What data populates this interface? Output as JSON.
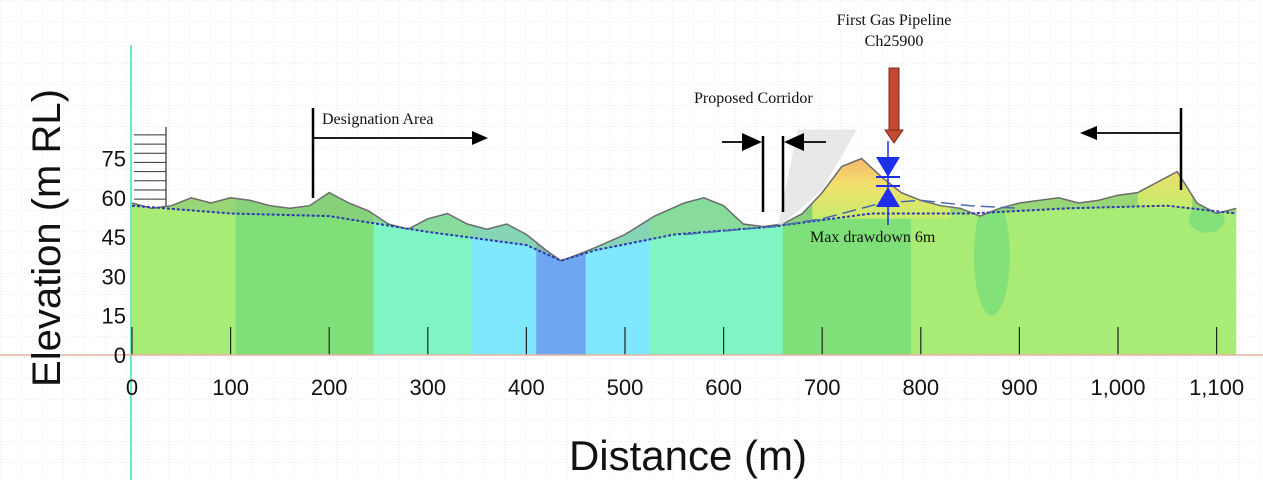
{
  "chart_data": {
    "type": "area",
    "title": "",
    "xlabel": "Distance (m)",
    "ylabel": "Elevation (m RL)",
    "x_ticks": [
      "0",
      "100",
      "200",
      "300",
      "400",
      "500",
      "600",
      "700",
      "800",
      "900",
      "1,000",
      "1,100"
    ],
    "y_ticks": [
      "0",
      "15",
      "30",
      "45",
      "60",
      "75"
    ],
    "xlim": [
      0,
      1120
    ],
    "ylim": [
      0,
      88
    ],
    "grid": true,
    "ground_surface": {
      "x": [
        0,
        20,
        40,
        60,
        80,
        100,
        120,
        140,
        160,
        180,
        200,
        220,
        240,
        260,
        280,
        300,
        320,
        340,
        360,
        380,
        400,
        420,
        435,
        450,
        470,
        500,
        530,
        560,
        580,
        600,
        620,
        640,
        660,
        680,
        700,
        720,
        740,
        760,
        780,
        800,
        820,
        840,
        860,
        880,
        900,
        920,
        940,
        960,
        980,
        1000,
        1020,
        1040,
        1060,
        1080,
        1100,
        1120
      ],
      "y": [
        58,
        56,
        57,
        60,
        58,
        60,
        59,
        57,
        56,
        57,
        62,
        58,
        55,
        50,
        48,
        52,
        54,
        50,
        48,
        50,
        46,
        40,
        36,
        38,
        41,
        46,
        53,
        58,
        60,
        57,
        50,
        49,
        50,
        54,
        62,
        72,
        75,
        68,
        62,
        59,
        57,
        56,
        53,
        56,
        58,
        59,
        60,
        58,
        59,
        61,
        62,
        66,
        70,
        58,
        54,
        56
      ]
    },
    "groundwater_series": [
      {
        "x": [
          0,
          100,
          200,
          300,
          400,
          435,
          470,
          550,
          650,
          750,
          850,
          950,
          1050,
          1120
        ],
        "y": [
          57,
          54,
          53,
          47,
          42,
          36,
          40,
          46,
          49,
          54,
          54,
          56,
          57,
          54
        ]
      },
      {
        "x": [
          560,
          650,
          700,
          760,
          800,
          850,
          900
        ],
        "y": [
          46,
          49,
          52,
          58,
          59,
          57,
          56
        ]
      }
    ],
    "annotations": {
      "designation_area": "Designation Area",
      "proposed_corridor": "Proposed Corridor",
      "pipeline_line1": "First Gas Pipeline",
      "pipeline_line2": "Ch25900",
      "max_drawdown": "Max drawdown 6m"
    },
    "colors": {
      "ground_green": "#a8ec76",
      "mid_green": "#7fe07a",
      "teal": "#80f5c4",
      "cyan": "#7fe8ff",
      "blue": "#6fa6f2",
      "hill_fill": "#8cc47a",
      "pipeline_arrow": "#c24a33",
      "drawdown_arrow": "#1d2fe8",
      "groundwater_line": "#2e3ab0",
      "zero_line": "#e8b0a0",
      "vertical_axis": "#6fe7cf"
    }
  }
}
